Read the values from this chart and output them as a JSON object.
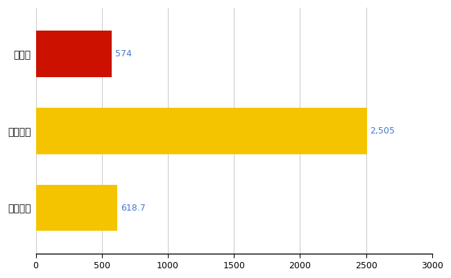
{
  "categories": [
    "青森県",
    "全国最大",
    "全国平均"
  ],
  "values": [
    574,
    2505,
    618.7
  ],
  "bar_colors": [
    "#cc1100",
    "#f5c400",
    "#f5c400"
  ],
  "label_color": "#4477cc",
  "labels": [
    "574",
    "2,505",
    "618.7"
  ],
  "xlim": [
    0,
    3000
  ],
  "xticks": [
    0,
    500,
    1000,
    1500,
    2000,
    2500,
    3000
  ],
  "background_color": "#ffffff",
  "grid_color": "#cccccc",
  "bar_height": 0.6,
  "figsize": [
    6.5,
    4.0
  ],
  "dpi": 100
}
